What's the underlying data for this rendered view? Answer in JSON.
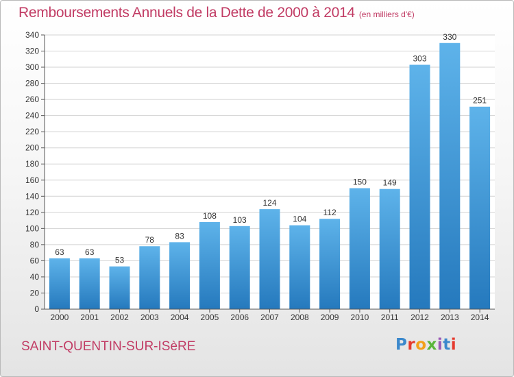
{
  "title": "Remboursements Annuels de la Dette de 2000 à 2014",
  "unit_note": "(en milliers d'€)",
  "city": "SAINT-QUENTIN-SUR-ISèRE",
  "brand": "Proxiti",
  "brand_colors": [
    "#3b88cc",
    "#e53a2e",
    "#f3a019",
    "#5ab53a",
    "#9b59b6"
  ],
  "colors": {
    "bar_light": "#5eb3ea",
    "bar_dark": "#2579bd",
    "accent": "#c13b64",
    "grid": "#d2d2d2",
    "axis": "#555555",
    "text": "#333333"
  },
  "chart_data": {
    "type": "bar",
    "title": "Remboursements Annuels de la Dette de 2000 à 2014",
    "xlabel": "",
    "ylabel": "(en milliers d'€)",
    "categories": [
      "2000",
      "2001",
      "2002",
      "2003",
      "2004",
      "2005",
      "2006",
      "2007",
      "2008",
      "2009",
      "2010",
      "2011",
      "2012",
      "2013",
      "2014"
    ],
    "values": [
      63,
      63,
      53,
      78,
      83,
      108,
      103,
      124,
      104,
      112,
      150,
      149,
      303,
      330,
      251
    ],
    "data_labels": [
      "63",
      "63",
      "53",
      "78",
      "83",
      "108",
      "103",
      "124",
      "104",
      "112",
      "150",
      "149",
      "303",
      "330",
      "251"
    ],
    "ylim": [
      0,
      340
    ],
    "ytick_step": 20,
    "grid": true,
    "legend": "none"
  }
}
